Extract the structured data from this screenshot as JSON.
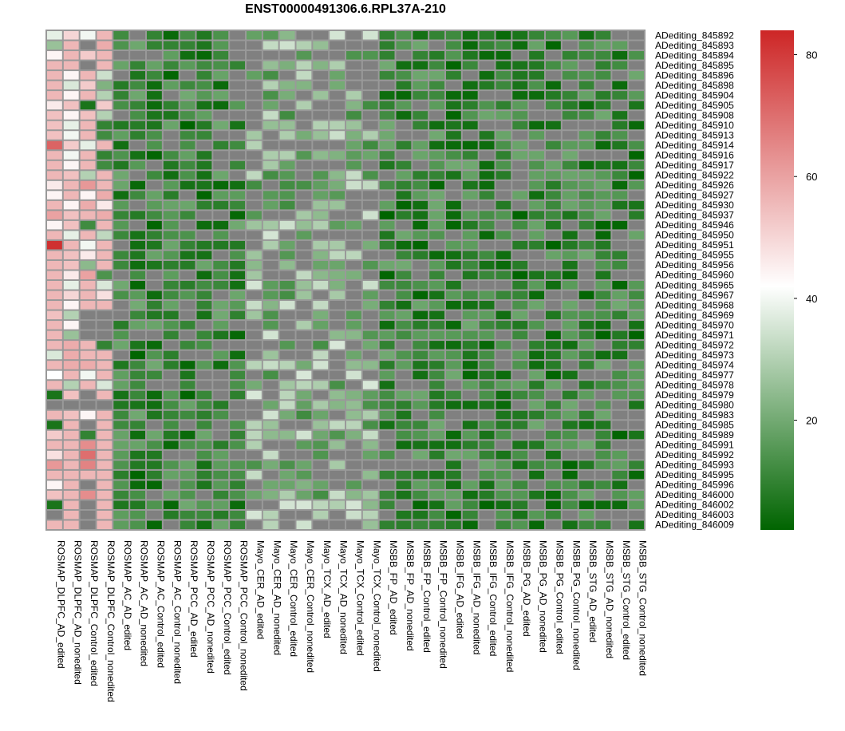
{
  "chart_data": {
    "type": "heatmap",
    "title": "ENST00000491306.6.RPL37A-210",
    "colorbar": {
      "range": [
        2,
        84
      ],
      "ticks": [
        20,
        40,
        60,
        80
      ],
      "colors": {
        "low": "#006400",
        "mid": "#ffffff",
        "high": "#cd2626"
      },
      "mid_value": 42
    },
    "na_color": "#808080",
    "columns": [
      "ROSMAP_DLPFC_AD_edited",
      "ROSMAP_DLPFC_AD_nonedited",
      "ROSMAP_DLPFC_Control_edited",
      "ROSMAP_DLPFC_Control_nonedited",
      "ROSMAP_AC_AD_edited",
      "ROSMAP_AC_AD_nonedited",
      "ROSMAP_AC_Control_edited",
      "ROSMAP_AC_Control_nonedited",
      "ROSMAP_PCC_AD_edited",
      "ROSMAP_PCC_AD_nonedited",
      "ROSMAP_PCC_Control_edited",
      "ROSMAP_PCC_Control_nonedited",
      "Mayo_CER_AD_edited",
      "Mayo_CER_AD_nonedited",
      "Mayo_CER_Control_edited",
      "Mayo_CER_Control_nonedited",
      "Mayo_TCX_AD_edited",
      "Mayo_TCX_AD_nonedited",
      "Mayo_TCX_Control_edited",
      "Mayo_TCX_Control_nonedited",
      "MSBB_FP_AD_edited",
      "MSBB_FP_AD_nonedited",
      "MSBB_FP_Control_edited",
      "MSBB_FP_Control_nonedited",
      "MSBB_IFG_AD_edited",
      "MSBB_IFG_AD_nonedited",
      "MSBB_IFG_Control_edited",
      "MSBB_IFG_Control_nonedited",
      "MSBB_PG_AD_edited",
      "MSBB_PG_AD_nonedited",
      "MSBB_PG_Control_edited",
      "MSBB_PG_Control_nonedited",
      "MSBB_STG_AD_edited",
      "MSBB_STG_AD_nonedited",
      "MSBB_STG_Control_edited",
      "MSBB_STG_Control_nonedited"
    ],
    "rows": [
      "ADediting_845892",
      "ADediting_845893",
      "ADediting_845894",
      "ADediting_845895",
      "ADediting_845896",
      "ADediting_845898",
      "ADediting_845904",
      "ADediting_845905",
      "ADediting_845908",
      "ADediting_845910",
      "ADediting_845913",
      "ADediting_845914",
      "ADediting_845916",
      "ADediting_845917",
      "ADediting_845922",
      "ADediting_845926",
      "ADediting_845927",
      "ADediting_845930",
      "ADediting_845937",
      "ADediting_845946",
      "ADediting_845950",
      "ADediting_845951",
      "ADediting_845955",
      "ADediting_845956",
      "ADediting_845960",
      "ADediting_845965",
      "ADediting_845967",
      "ADediting_845968",
      "ADediting_845969",
      "ADediting_845970",
      "ADediting_845971",
      "ADediting_845972",
      "ADediting_845973",
      "ADediting_845974",
      "ADediting_845977",
      "ADediting_845978",
      "ADediting_845979",
      "ADediting_845980",
      "ADediting_845983",
      "ADediting_845985",
      "ADediting_845989",
      "ADediting_845991",
      "ADediting_845992",
      "ADediting_845993",
      "ADediting_845995",
      "ADediting_845996",
      "ADediting_846000",
      "ADediting_846002",
      "ADediting_846003",
      "ADediting_846009"
    ],
    "first_four_columns_values": [
      [
        38,
        50,
        40,
        56
      ],
      [
        26,
        56,
        null,
        58
      ],
      [
        44,
        56,
        52,
        56
      ],
      [
        56,
        56,
        null,
        56
      ],
      [
        56,
        44,
        56,
        34
      ],
      [
        56,
        36,
        52,
        22
      ],
      [
        56,
        44,
        56,
        30
      ],
      [
        46,
        54,
        6,
        52
      ],
      [
        54,
        44,
        54,
        30
      ],
      [
        54,
        38,
        56,
        10
      ],
      [
        54,
        40,
        56,
        12
      ],
      [
        72,
        52,
        38,
        56
      ],
      [
        56,
        40,
        56,
        10
      ],
      [
        56,
        44,
        56,
        12
      ],
      [
        56,
        54,
        30,
        56
      ],
      [
        46,
        56,
        62,
        56
      ],
      [
        44,
        56,
        44,
        58
      ],
      [
        56,
        44,
        58,
        46
      ],
      [
        60,
        54,
        56,
        58
      ],
      [
        44,
        54,
        12,
        56
      ],
      [
        56,
        38,
        56,
        32
      ],
      [
        82,
        56,
        40,
        56
      ],
      [
        56,
        54,
        46,
        56
      ],
      [
        56,
        54,
        24,
        56
      ],
      [
        56,
        46,
        60,
        14
      ],
      [
        56,
        38,
        56,
        36
      ],
      [
        56,
        50,
        56,
        48
      ],
      [
        56,
        44,
        56,
        56
      ],
      [
        54,
        30,
        null,
        null
      ],
      [
        56,
        44,
        null,
        null
      ],
      [
        56,
        26,
        null,
        null
      ],
      [
        56,
        58,
        56,
        10
      ],
      [
        36,
        58,
        56,
        56
      ],
      [
        56,
        58,
        58,
        56
      ],
      [
        42,
        56,
        40,
        56
      ],
      [
        56,
        30,
        56,
        36
      ],
      [
        6,
        54,
        null,
        56
      ],
      [
        null,
        null,
        null,
        null
      ],
      [
        56,
        54,
        44,
        56
      ],
      [
        6,
        56,
        null,
        56
      ],
      [
        52,
        56,
        10,
        56
      ],
      [
        56,
        56,
        64,
        56
      ],
      [
        48,
        56,
        70,
        56
      ],
      [
        62,
        56,
        66,
        56
      ],
      [
        56,
        56,
        56,
        56
      ],
      [
        44,
        56,
        null,
        56
      ],
      [
        54,
        56,
        64,
        56
      ],
      [
        6,
        56,
        null,
        56
      ],
      [
        null,
        56,
        null,
        56
      ],
      [
        56,
        56,
        null,
        56
      ]
    ],
    "columns_5_to_36_range": [
      2,
      30
    ]
  }
}
